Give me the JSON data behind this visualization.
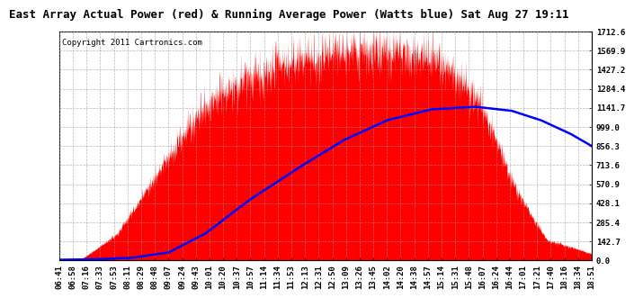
{
  "title": "East Array Actual Power (red) & Running Average Power (Watts blue) Sat Aug 27 19:11",
  "copyright": "Copyright 2011 Cartronics.com",
  "ymin": 0.0,
  "ymax": 1712.6,
  "yticks": [
    0.0,
    142.7,
    285.4,
    428.1,
    570.9,
    713.6,
    856.3,
    999.0,
    1141.7,
    1284.4,
    1427.2,
    1569.9,
    1712.6
  ],
  "xtick_labels": [
    "06:41",
    "06:58",
    "07:16",
    "07:33",
    "07:53",
    "08:11",
    "08:29",
    "08:48",
    "09:07",
    "09:24",
    "09:43",
    "10:01",
    "10:20",
    "10:37",
    "10:57",
    "11:14",
    "11:34",
    "11:53",
    "12:13",
    "12:31",
    "12:50",
    "13:09",
    "13:26",
    "13:45",
    "14:02",
    "14:20",
    "14:38",
    "14:57",
    "15:14",
    "15:31",
    "15:48",
    "16:07",
    "16:24",
    "16:44",
    "17:01",
    "17:21",
    "17:40",
    "18:16",
    "18:34",
    "18:51"
  ],
  "actual_power_color": "#FF0000",
  "avg_power_color": "#0000FF",
  "background_color": "#FFFFFF",
  "grid_color": "#999999",
  "title_fontsize": 9,
  "copyright_fontsize": 6.5,
  "tick_label_fontsize": 6.5,
  "n_points": 2000,
  "envelope_keypoints_t": [
    0,
    30,
    80,
    140,
    200,
    260,
    330,
    390,
    450,
    510,
    540,
    580,
    620,
    650,
    670,
    690,
    730
  ],
  "envelope_keypoints_v": [
    5,
    8,
    200,
    700,
    1150,
    1380,
    1500,
    1560,
    1560,
    1520,
    1400,
    1150,
    600,
    300,
    150,
    120,
    50
  ],
  "avg_keypoints_t": [
    0,
    50,
    100,
    150,
    200,
    260,
    330,
    390,
    450,
    510,
    570,
    620,
    660,
    700,
    730
  ],
  "avg_keypoints_v": [
    5,
    8,
    20,
    60,
    200,
    450,
    700,
    900,
    1050,
    1130,
    1150,
    1120,
    1050,
    950,
    856
  ]
}
